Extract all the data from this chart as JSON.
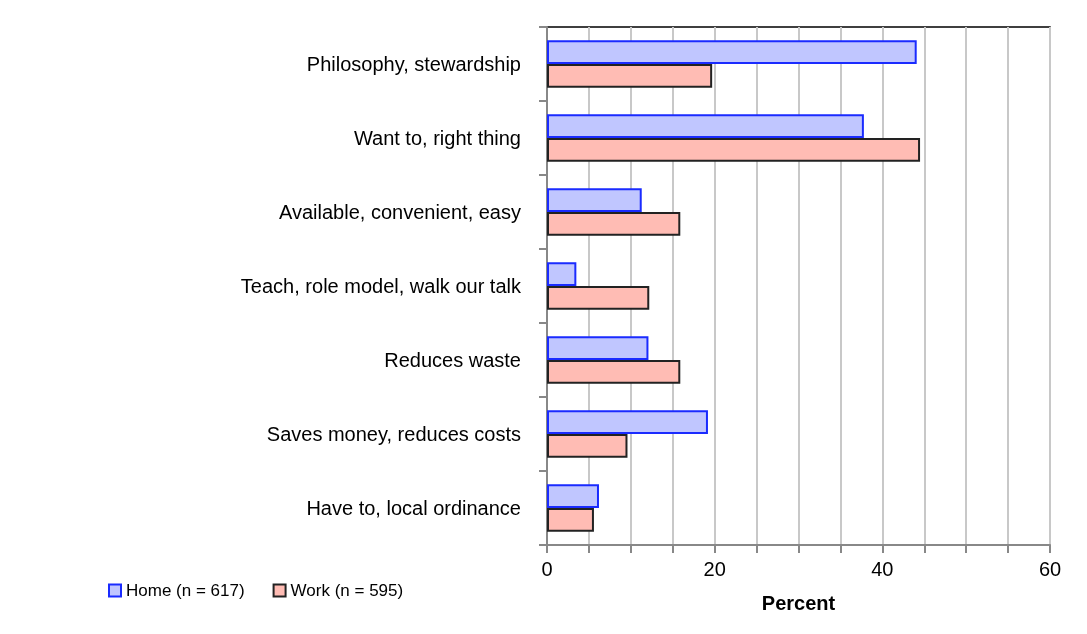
{
  "chart_data": {
    "type": "bar",
    "orientation": "horizontal",
    "xlabel": "Percent",
    "categories": [
      "Philosophy, stewardship",
      "Want to, right thing",
      "Available, convenient, easy",
      "Teach, role model, walk our talk",
      "Reduces waste",
      "Saves money, reduces costs",
      "Have to, local ordinance"
    ],
    "series": [
      {
        "name": "Home (n = 617)",
        "color": "#c0c6ff",
        "values": [
          44.1,
          37.8,
          11.3,
          3.5,
          12.1,
          19.2,
          6.2
        ]
      },
      {
        "name": "Work (n = 595)",
        "color": "#ffbcb4",
        "values": [
          19.7,
          44.5,
          15.9,
          12.2,
          15.9,
          9.6,
          5.6
        ]
      }
    ],
    "xlim": [
      0,
      60
    ],
    "xticks": [
      0,
      {
        "value": 5,
        "label": null
      },
      {
        "value": 10,
        "label": null
      },
      {
        "value": 15,
        "label": null
      },
      20,
      {
        "value": 25,
        "label": null
      },
      {
        "value": 30,
        "label": null
      },
      {
        "value": 35,
        "label": null
      },
      40,
      {
        "value": 45,
        "label": null
      },
      {
        "value": 50,
        "label": null
      },
      {
        "value": 55,
        "label": null
      },
      60
    ],
    "grid": "x",
    "legend": "bottom left"
  }
}
